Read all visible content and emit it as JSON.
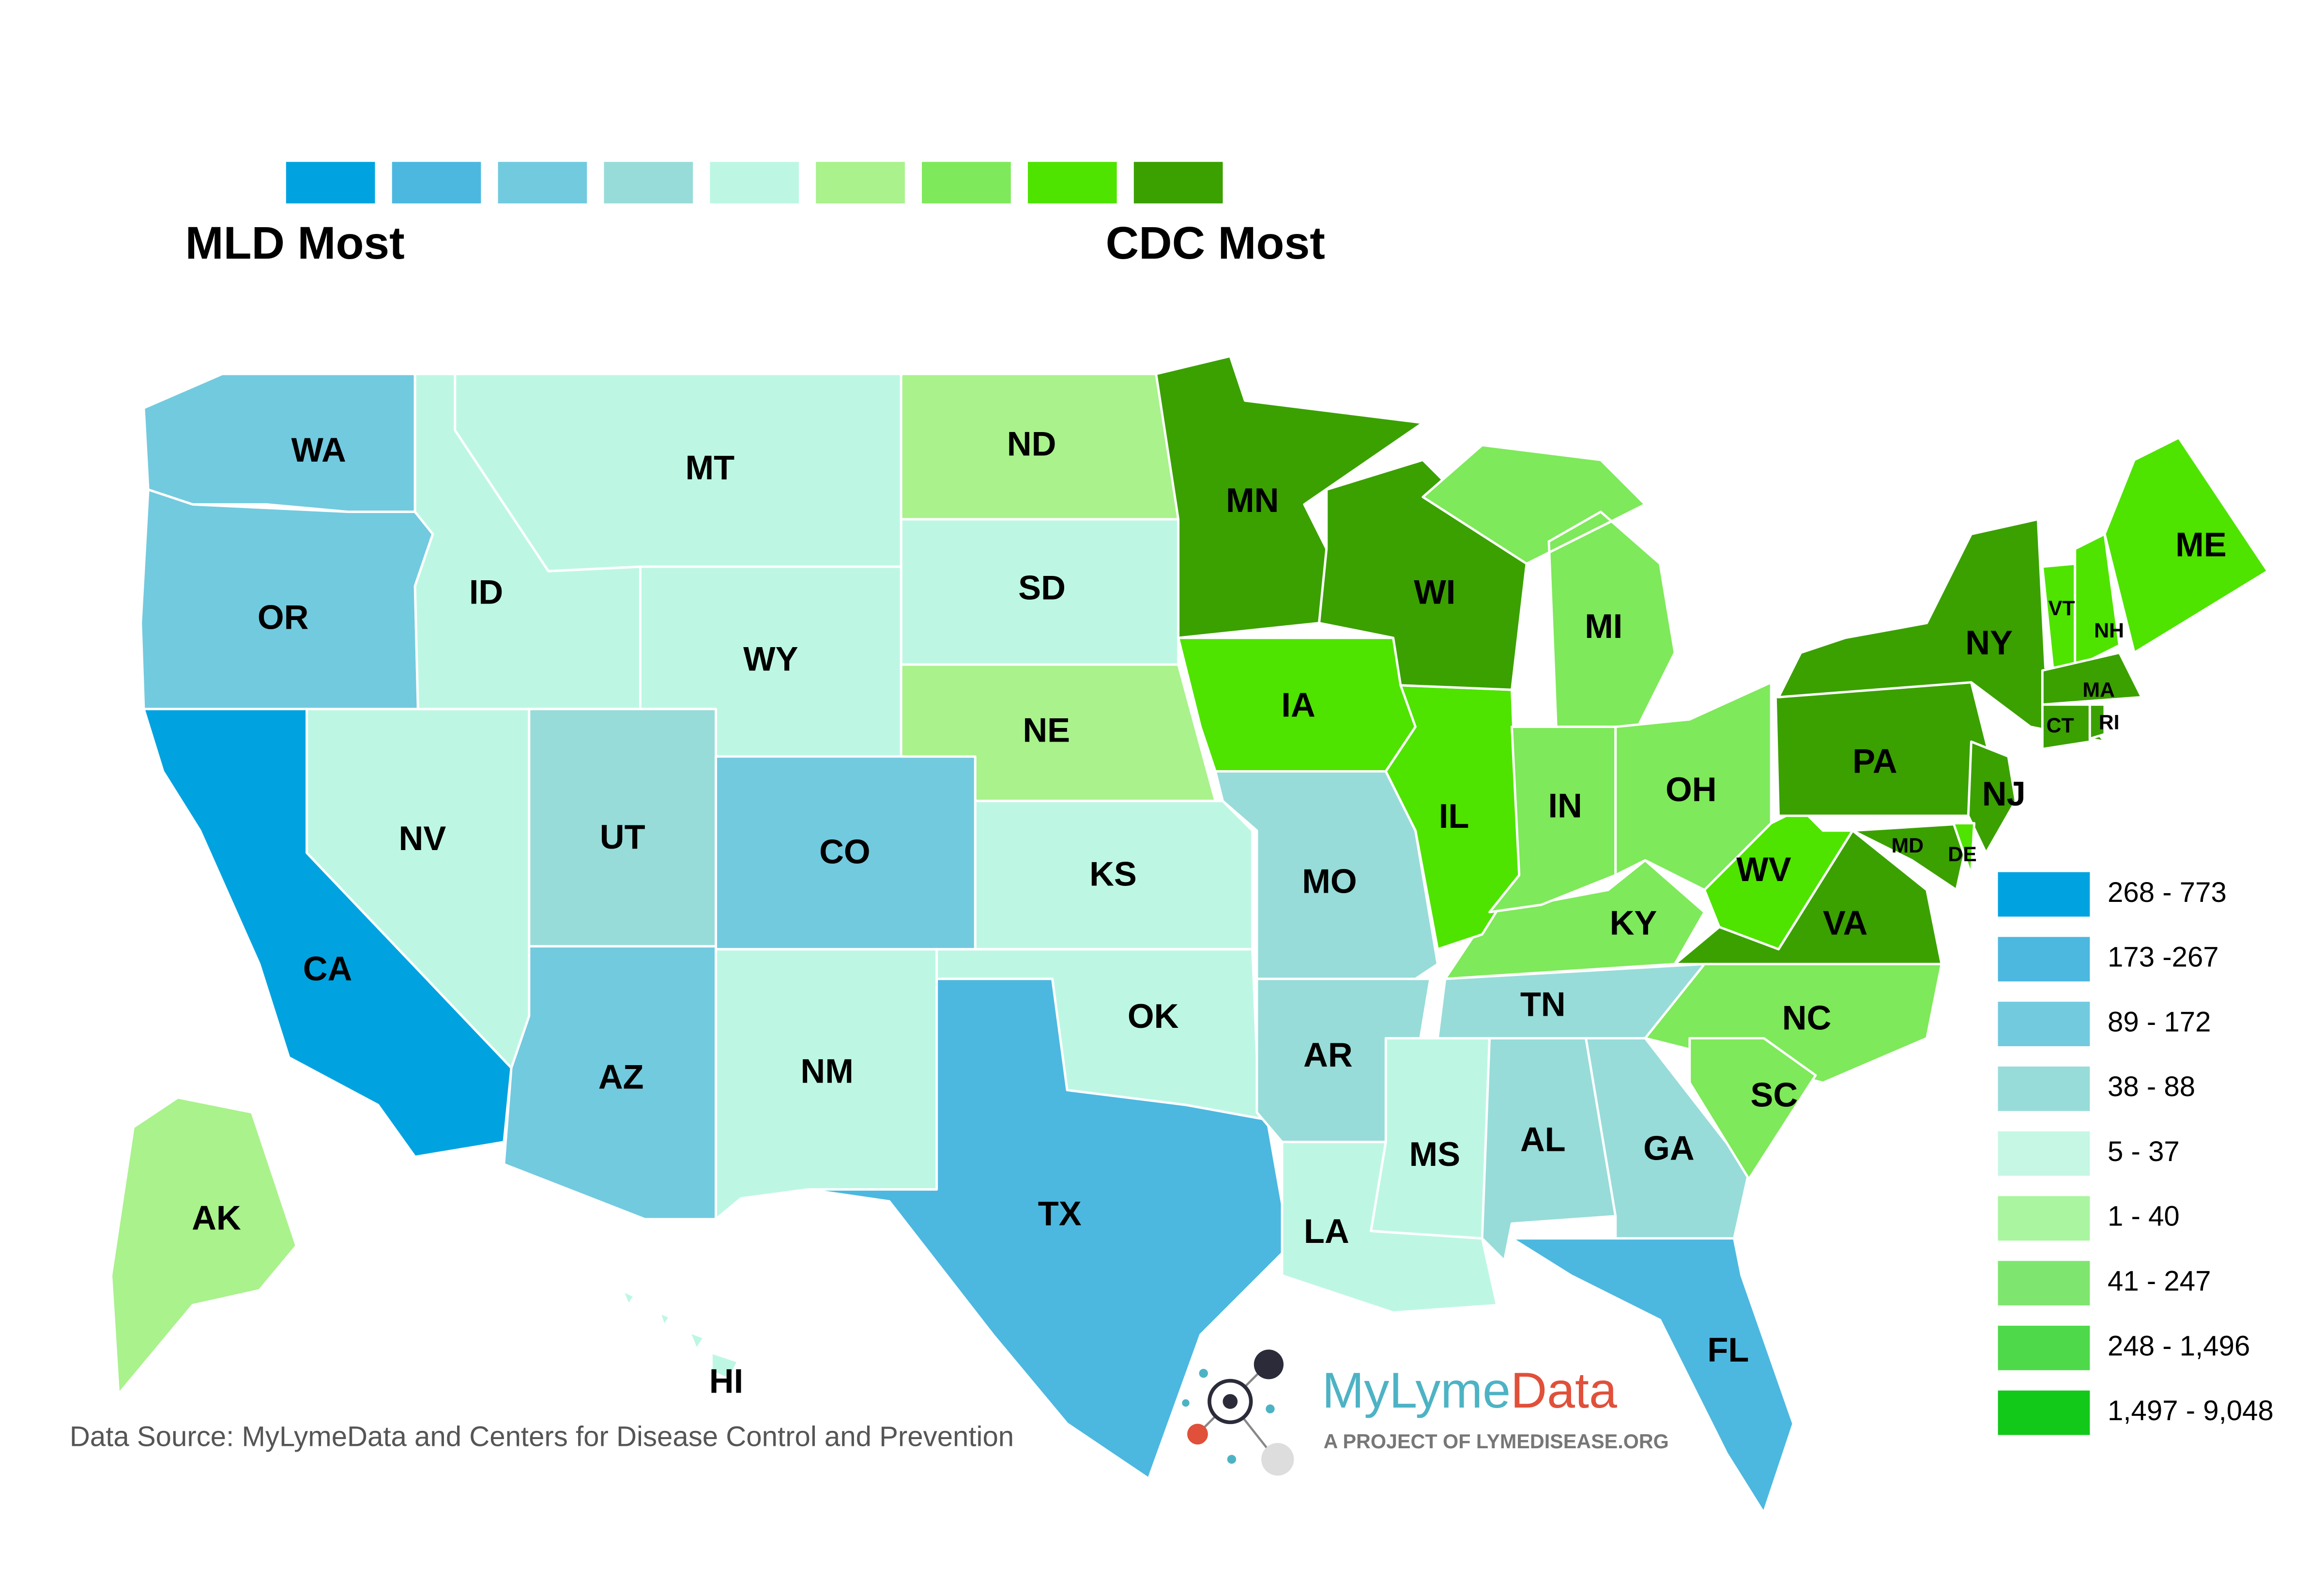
{
  "top_legend": {
    "colors": [
      "#00a3e0",
      "#4cb8e0",
      "#72cadf",
      "#97dcd9",
      "#bdf7e4",
      "#a9f28c",
      "#7ee95a",
      "#4fe300",
      "#3aa100"
    ],
    "left_label": "MLD Most",
    "right_label": "CDC Most"
  },
  "states": [
    {
      "label": "WA",
      "color": "#72cadf"
    },
    {
      "label": "OR",
      "color": "#72cadf"
    },
    {
      "label": "CA",
      "color": "#00a3e0"
    },
    {
      "label": "NV",
      "color": "#bdf7e4"
    },
    {
      "label": "ID",
      "color": "#bdf7e4"
    },
    {
      "label": "MT",
      "color": "#bdf7e4"
    },
    {
      "label": "WY",
      "color": "#bdf7e4"
    },
    {
      "label": "UT",
      "color": "#97dcd9"
    },
    {
      "label": "CO",
      "color": "#72cadf"
    },
    {
      "label": "AZ",
      "color": "#72cadf"
    },
    {
      "label": "NM",
      "color": "#bdf7e4"
    },
    {
      "label": "ND",
      "color": "#a9f28c"
    },
    {
      "label": "SD",
      "color": "#bdf7e4"
    },
    {
      "label": "NE",
      "color": "#a9f28c"
    },
    {
      "label": "KS",
      "color": "#bdf7e4"
    },
    {
      "label": "OK",
      "color": "#bdf7e4"
    },
    {
      "label": "TX",
      "color": "#4cb8e0"
    },
    {
      "label": "MN",
      "color": "#3aa100"
    },
    {
      "label": "IA",
      "color": "#4fe300"
    },
    {
      "label": "MO",
      "color": "#97dcd9"
    },
    {
      "label": "AR",
      "color": "#97dcd9"
    },
    {
      "label": "LA",
      "color": "#bdf7e4"
    },
    {
      "label": "MS",
      "color": "#bdf7e4"
    },
    {
      "label": "AL",
      "color": "#97dcd9"
    },
    {
      "label": "GA",
      "color": "#97dcd9"
    },
    {
      "label": "FL",
      "color": "#4cb8e0"
    },
    {
      "label": "TN",
      "color": "#97dcd9"
    },
    {
      "label": "KY",
      "color": "#7ee95a"
    },
    {
      "label": "IL",
      "color": "#4fe300"
    },
    {
      "label": "WI",
      "color": "#3aa100"
    },
    {
      "label": "MI",
      "color": "#7ee95a"
    },
    {
      "label": "IN",
      "color": "#7ee95a"
    },
    {
      "label": "OH",
      "color": "#7ee95a"
    },
    {
      "label": "WV",
      "color": "#4fe300"
    },
    {
      "label": "VA",
      "color": "#3aa100"
    },
    {
      "label": "NC",
      "color": "#7ee95a"
    },
    {
      "label": "SC",
      "color": "#7ee95a"
    },
    {
      "label": "PA",
      "color": "#3aa100"
    },
    {
      "label": "NY",
      "color": "#3aa100"
    },
    {
      "label": "NJ",
      "color": "#3aa100"
    },
    {
      "label": "MD",
      "color": "#3aa100"
    },
    {
      "label": "DE",
      "color": "#4fe300"
    },
    {
      "label": "VT",
      "color": "#4fe300"
    },
    {
      "label": "NH",
      "color": "#4fe300"
    },
    {
      "label": "ME",
      "color": "#4fe300"
    },
    {
      "label": "MA",
      "color": "#3aa100"
    },
    {
      "label": "CT",
      "color": "#3aa100"
    },
    {
      "label": "RI",
      "color": "#3aa100"
    },
    {
      "label": "AK",
      "color": "#a9f28c"
    },
    {
      "label": "HI",
      "color": "#bdf7e4"
    }
  ],
  "legend": [
    {
      "label": "268 - 773",
      "color": "#00a3e0"
    },
    {
      "label": "173 -267",
      "color": "#4cb8e0"
    },
    {
      "label": "89 - 172",
      "color": "#72cadf"
    },
    {
      "label": "38 - 88",
      "color": "#97dcd9"
    },
    {
      "label": "5 - 37",
      "color": "#c5f7e4"
    },
    {
      "label": "1 - 40",
      "color": "#a9f5a0"
    },
    {
      "label": "41 - 247",
      "color": "#7ee66e"
    },
    {
      "label": "248 - 1,496",
      "color": "#4ed94a"
    },
    {
      "label": "1,497 - 9,048",
      "color": "#12c91a"
    }
  ],
  "source": "Data Source: MyLymeData and Centers for Disease Control and Prevention",
  "logo": {
    "name_part1": "MyLyme",
    "name_part2": "Data",
    "tagline": "A PROJECT OF LYMEDISEASE.ORG"
  }
}
